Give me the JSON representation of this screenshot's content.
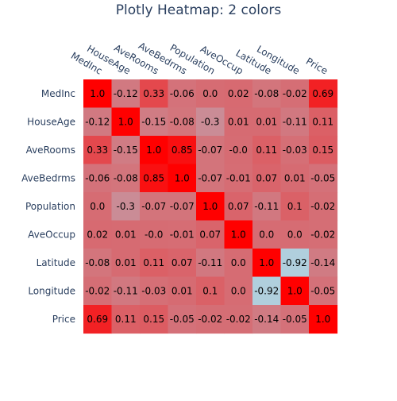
{
  "chart_data": {
    "type": "heatmap",
    "title": "Plotly Heatmap: 2 colors",
    "x": [
      "MedInc",
      "HouseAge",
      "AveRooms",
      "AveBedrms",
      "Population",
      "AveOccup",
      "Latitude",
      "Longitude",
      "Price"
    ],
    "y": [
      "MedInc",
      "HouseAge",
      "AveRooms",
      "AveBedrms",
      "Population",
      "AveOccup",
      "Latitude",
      "Longitude",
      "Price"
    ],
    "z": [
      [
        1.0,
        -0.12,
        0.33,
        -0.06,
        0.0,
        0.02,
        -0.08,
        -0.02,
        0.69
      ],
      [
        -0.12,
        1.0,
        -0.15,
        -0.08,
        -0.3,
        0.01,
        0.01,
        -0.11,
        0.11
      ],
      [
        0.33,
        -0.15,
        1.0,
        0.85,
        -0.07,
        -0.0,
        0.11,
        -0.03,
        0.15
      ],
      [
        -0.06,
        -0.08,
        0.85,
        1.0,
        -0.07,
        -0.01,
        0.07,
        0.01,
        -0.05
      ],
      [
        0.0,
        -0.3,
        -0.07,
        -0.07,
        1.0,
        0.07,
        -0.11,
        0.1,
        -0.02
      ],
      [
        0.02,
        0.01,
        -0.0,
        -0.01,
        0.07,
        1.0,
        0.0,
        0.0,
        -0.02
      ],
      [
        -0.08,
        0.01,
        0.11,
        0.07,
        -0.11,
        0.0,
        1.0,
        -0.92,
        -0.14
      ],
      [
        -0.02,
        -0.11,
        -0.03,
        0.01,
        0.1,
        0.0,
        -0.92,
        1.0,
        -0.05
      ],
      [
        0.69,
        0.11,
        0.15,
        -0.05,
        -0.02,
        -0.02,
        -0.14,
        -0.05,
        1.0
      ]
    ],
    "cell_labels": [
      [
        "1.0",
        "-0.12",
        "0.33",
        "-0.06",
        "0.0",
        "0.02",
        "-0.08",
        "-0.02",
        "0.69"
      ],
      [
        "-0.12",
        "1.0",
        "-0.15",
        "-0.08",
        "-0.3",
        "0.01",
        "0.01",
        "-0.11",
        "0.11"
      ],
      [
        "0.33",
        "-0.15",
        "1.0",
        "0.85",
        "-0.07",
        "-0.0",
        "0.11",
        "-0.03",
        "0.15"
      ],
      [
        "-0.06",
        "-0.08",
        "0.85",
        "1.0",
        "-0.07",
        "-0.01",
        "0.07",
        "0.01",
        "-0.05"
      ],
      [
        "0.0",
        "-0.3",
        "-0.07",
        "-0.07",
        "1.0",
        "0.07",
        "-0.11",
        "0.1",
        "-0.02"
      ],
      [
        "0.02",
        "0.01",
        "-0.0",
        "-0.01",
        "0.07",
        "1.0",
        "0.0",
        "0.0",
        "-0.02"
      ],
      [
        "-0.08",
        "0.01",
        "0.11",
        "0.07",
        "-0.11",
        "0.0",
        "1.0",
        "-0.92",
        "-0.14"
      ],
      [
        "-0.02",
        "-0.11",
        "-0.03",
        "0.01",
        "0.1",
        "0.0",
        "-0.92",
        "1.0",
        "-0.05"
      ],
      [
        "0.69",
        "0.11",
        "0.15",
        "-0.05",
        "-0.02",
        "-0.02",
        "-0.14",
        "-0.05",
        "1.0"
      ]
    ],
    "zrange": [
      -1,
      1
    ],
    "colorscale": [
      "#add8e6",
      "#ff0000"
    ],
    "x_axis_side": "top",
    "show_colorbar": false,
    "grid": false
  }
}
